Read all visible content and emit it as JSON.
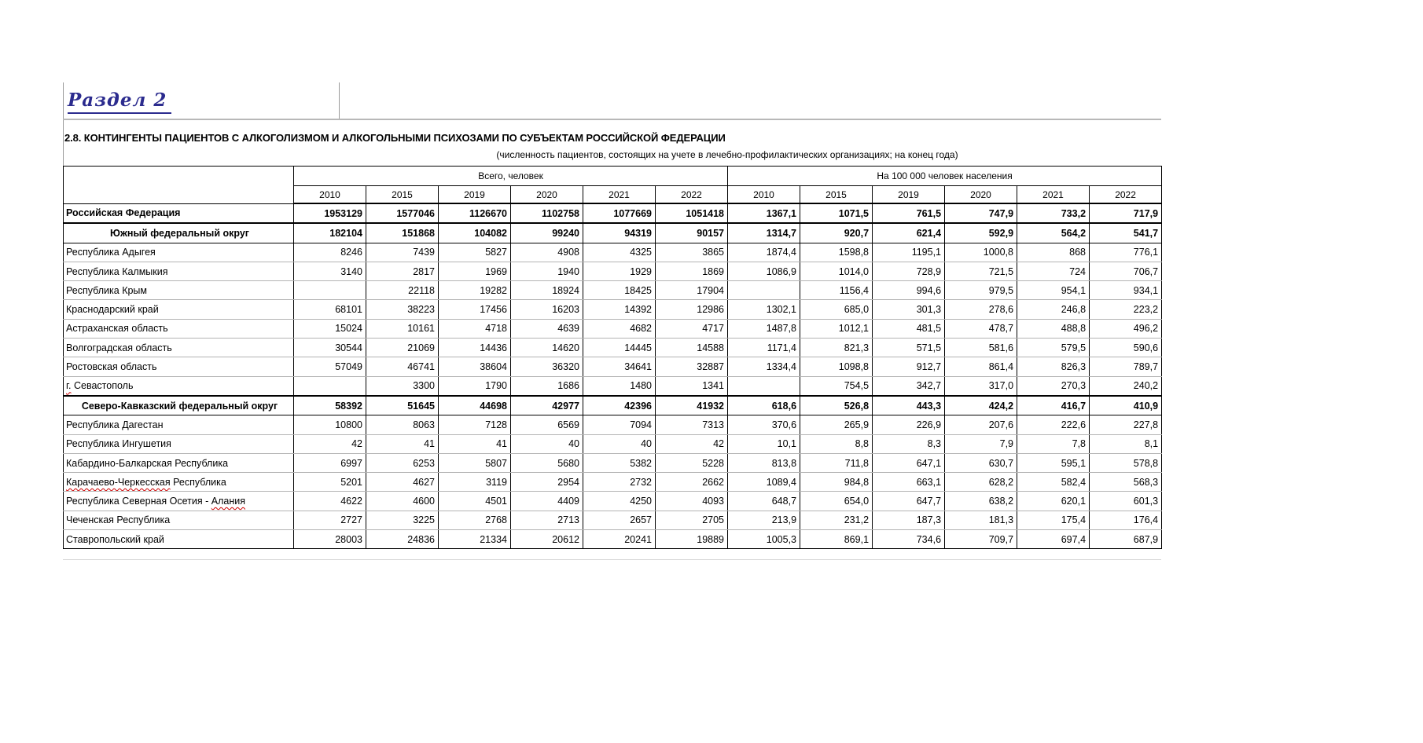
{
  "page": {
    "section_label": "Раздел 2",
    "title": "2.8. КОНТИНГЕНТЫ ПАЦИЕНТОВ С АЛКОГОЛИЗМОМ  И АЛКОГОЛЬНЫМИ ПСИХОЗАМИ ПО СУБЪЕКТАМ РОССИЙСКОЙ ФЕДЕРАЦИИ",
    "subtitle": "(численность пациентов, состоящих на учете в лечебно-профилактических организациях; на конец года)"
  },
  "table": {
    "group_headers": [
      {
        "label": "Всего, человек",
        "colspan": 6
      },
      {
        "label": "На 100 000 человек населения",
        "colspan": 6
      }
    ],
    "years": [
      "2010",
      "2015",
      "2019",
      "2020",
      "2021",
      "2022",
      "2010",
      "2015",
      "2019",
      "2020",
      "2021",
      "2022"
    ],
    "rows": [
      {
        "name": "Российская Федерация",
        "style": "bold-left",
        "values": [
          "1953129",
          "1577046",
          "1126670",
          "1102758",
          "1077669",
          "1051418",
          "1367,1",
          "1071,5",
          "761,5",
          "747,9",
          "733,2",
          "717,9"
        ]
      },
      {
        "name": "Южный федеральный округ",
        "style": "bold-center",
        "values": [
          "182104",
          "151868",
          "104082",
          "99240",
          "94319",
          "90157",
          "1314,7",
          "920,7",
          "621,4",
          "592,9",
          "564,2",
          "541,7"
        ]
      },
      {
        "name": "Республика Адыгея",
        "style": "normal",
        "values": [
          "8246",
          "7439",
          "5827",
          "4908",
          "4325",
          "3865",
          "1874,4",
          "1598,8",
          "1195,1",
          "1000,8",
          "868",
          "776,1"
        ]
      },
      {
        "name": "Республика Калмыкия",
        "style": "normal",
        "values": [
          "3140",
          "2817",
          "1969",
          "1940",
          "1929",
          "1869",
          "1086,9",
          "1014,0",
          "728,9",
          "721,5",
          "724",
          "706,7"
        ]
      },
      {
        "name": "Республика Крым",
        "style": "normal",
        "values": [
          "",
          "22118",
          "19282",
          "18924",
          "18425",
          "17904",
          "",
          "1156,4",
          "994,6",
          "979,5",
          "954,1",
          "934,1"
        ]
      },
      {
        "name": "Краснодарский край",
        "style": "normal",
        "values": [
          "68101",
          "38223",
          "17456",
          "16203",
          "14392",
          "12986",
          "1302,1",
          "685,0",
          "301,3",
          "278,6",
          "246,8",
          "223,2"
        ]
      },
      {
        "name": "Астраханская область",
        "style": "normal",
        "values": [
          "15024",
          "10161",
          "4718",
          "4639",
          "4682",
          "4717",
          "1487,8",
          "1012,1",
          "481,5",
          "478,7",
          "488,8",
          "496,2"
        ]
      },
      {
        "name": "Волгоградская область",
        "style": "normal",
        "values": [
          "30544",
          "21069",
          "14436",
          "14620",
          "14445",
          "14588",
          "1171,4",
          "821,3",
          "571,5",
          "581,6",
          "579,5",
          "590,6"
        ]
      },
      {
        "name": "Ростовская область",
        "style": "normal",
        "values": [
          "57049",
          "46741",
          "38604",
          "36320",
          "34641",
          "32887",
          "1334,4",
          "1098,8",
          "912,7",
          "861,4",
          "826,3",
          "789,7"
        ]
      },
      {
        "name": "г. Севастополь",
        "style": "normal",
        "misspelled": [
          "г."
        ],
        "values": [
          "",
          "3300",
          "1790",
          "1686",
          "1480",
          "1341",
          "",
          "754,5",
          "342,7",
          "317,0",
          "270,3",
          "240,2"
        ]
      },
      {
        "name": "Северо-Кавказский федеральный округ",
        "style": "bold-center",
        "values": [
          "58392",
          "51645",
          "44698",
          "42977",
          "42396",
          "41932",
          "618,6",
          "526,8",
          "443,3",
          "424,2",
          "416,7",
          "410,9"
        ]
      },
      {
        "name": "Республика Дагестан",
        "style": "normal",
        "values": [
          "10800",
          "8063",
          "7128",
          "6569",
          "7094",
          "7313",
          "370,6",
          "265,9",
          "226,9",
          "207,6",
          "222,6",
          "227,8"
        ]
      },
      {
        "name": "Республика Ингушетия",
        "style": "normal",
        "values": [
          "42",
          "41",
          "41",
          "40",
          "40",
          "42",
          "10,1",
          "8,8",
          "8,3",
          "7,9",
          "7,8",
          "8,1"
        ]
      },
      {
        "name": "Кабардино-Балкарская Республика",
        "style": "normal",
        "values": [
          "6997",
          "6253",
          "5807",
          "5680",
          "5382",
          "5228",
          "813,8",
          "711,8",
          "647,1",
          "630,7",
          "595,1",
          "578,8"
        ]
      },
      {
        "name": "Карачаево-Черкесская Республика",
        "style": "normal",
        "misspelled": [
          "Карачаево-Черкесская"
        ],
        "values": [
          "5201",
          "4627",
          "3119",
          "2954",
          "2732",
          "2662",
          "1089,4",
          "984,8",
          "663,1",
          "628,2",
          "582,4",
          "568,3"
        ]
      },
      {
        "name": "Республика Северная Осетия - Алания",
        "style": "normal",
        "misspelled": [
          "Алания"
        ],
        "values": [
          "4622",
          "4600",
          "4501",
          "4409",
          "4250",
          "4093",
          "648,7",
          "654,0",
          "647,7",
          "638,2",
          "620,1",
          "601,3"
        ]
      },
      {
        "name": "Чеченская Республика",
        "style": "normal",
        "values": [
          "2727",
          "3225",
          "2768",
          "2713",
          "2657",
          "2705",
          "213,9",
          "231,2",
          "187,3",
          "181,3",
          "175,4",
          "176,4"
        ]
      },
      {
        "name": "Ставропольский край",
        "style": "normal",
        "values": [
          "28003",
          "24836",
          "21334",
          "20612",
          "20241",
          "19889",
          "1005,3",
          "869,1",
          "734,6",
          "709,7",
          "697,4",
          "687,9"
        ]
      }
    ]
  }
}
